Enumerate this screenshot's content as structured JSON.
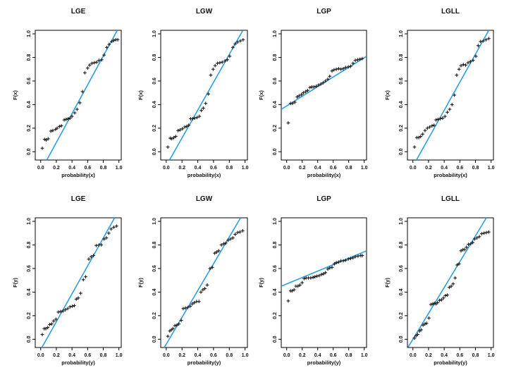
{
  "figure": {
    "background": "#ffffff",
    "description": "2x4 grid of P-P probability plots with fitted lines"
  },
  "style": {
    "line_color": "#2B9FE0",
    "marker_color": "#1a1a1a",
    "axis_color": "#000000",
    "text_color": "#111111"
  },
  "axis": {
    "tick_values": [
      0.0,
      0.2,
      0.4,
      0.6,
      0.8,
      1.0
    ],
    "tick_labels": [
      "0.0",
      "0.2",
      "0.4",
      "0.6",
      "0.8",
      "1.0"
    ],
    "range": [
      -0.07,
      1.03
    ]
  },
  "chart_data": [
    {
      "type": "scatter",
      "title": "LGE",
      "xlabel": "probability(x)",
      "ylabel": "F(x)",
      "xlim": [
        0,
        1
      ],
      "ylim": [
        0,
        1
      ],
      "line": {
        "x1": 0.078,
        "y1": -0.07,
        "x2": 0.979,
        "y2": 1.03
      },
      "points": [
        [
          0.02,
          0.03
        ],
        [
          0.05,
          0.105
        ],
        [
          0.07,
          0.1
        ],
        [
          0.095,
          0.11
        ],
        [
          0.13,
          0.175
        ],
        [
          0.155,
          0.18
        ],
        [
          0.19,
          0.19
        ],
        [
          0.21,
          0.2
        ],
        [
          0.24,
          0.215
        ],
        [
          0.265,
          0.22
        ],
        [
          0.3,
          0.27
        ],
        [
          0.325,
          0.275
        ],
        [
          0.35,
          0.28
        ],
        [
          0.375,
          0.285
        ],
        [
          0.4,
          0.3
        ],
        [
          0.435,
          0.33
        ],
        [
          0.465,
          0.36
        ],
        [
          0.5,
          0.415
        ],
        [
          0.535,
          0.51
        ],
        [
          0.565,
          0.67
        ],
        [
          0.6,
          0.71
        ],
        [
          0.625,
          0.735
        ],
        [
          0.655,
          0.75
        ],
        [
          0.685,
          0.755
        ],
        [
          0.715,
          0.76
        ],
        [
          0.745,
          0.775
        ],
        [
          0.78,
          0.78
        ],
        [
          0.81,
          0.82
        ],
        [
          0.845,
          0.885
        ],
        [
          0.875,
          0.91
        ],
        [
          0.91,
          0.935
        ],
        [
          0.935,
          0.945
        ],
        [
          0.96,
          0.95
        ],
        [
          0.985,
          0.95
        ]
      ]
    },
    {
      "type": "scatter",
      "title": "LGW",
      "xlabel": "probability(x)",
      "ylabel": "F(x)",
      "xlim": [
        0,
        1
      ],
      "ylim": [
        0,
        1
      ],
      "line": {
        "x1": 0.042,
        "y1": -0.07,
        "x2": 0.973,
        "y2": 1.03
      },
      "points": [
        [
          0.02,
          0.04
        ],
        [
          0.05,
          0.115
        ],
        [
          0.07,
          0.11
        ],
        [
          0.095,
          0.12
        ],
        [
          0.12,
          0.13
        ],
        [
          0.15,
          0.18
        ],
        [
          0.175,
          0.185
        ],
        [
          0.205,
          0.195
        ],
        [
          0.235,
          0.21
        ],
        [
          0.26,
          0.215
        ],
        [
          0.285,
          0.225
        ],
        [
          0.31,
          0.28
        ],
        [
          0.335,
          0.28
        ],
        [
          0.36,
          0.285
        ],
        [
          0.39,
          0.29
        ],
        [
          0.42,
          0.3
        ],
        [
          0.445,
          0.35
        ],
        [
          0.47,
          0.37
        ],
        [
          0.5,
          0.41
        ],
        [
          0.535,
          0.49
        ],
        [
          0.565,
          0.65
        ],
        [
          0.595,
          0.7
        ],
        [
          0.62,
          0.73
        ],
        [
          0.65,
          0.75
        ],
        [
          0.68,
          0.755
        ],
        [
          0.71,
          0.76
        ],
        [
          0.745,
          0.77
        ],
        [
          0.775,
          0.78
        ],
        [
          0.805,
          0.81
        ],
        [
          0.845,
          0.885
        ],
        [
          0.875,
          0.915
        ],
        [
          0.905,
          0.93
        ],
        [
          0.94,
          0.94
        ],
        [
          0.975,
          0.95
        ]
      ]
    },
    {
      "type": "scatter",
      "title": "LGP",
      "xlabel": "probability(x)",
      "ylabel": "F(x)",
      "xlim": [
        0,
        1
      ],
      "ylim": [
        0,
        1
      ],
      "line": {
        "x1": -0.07,
        "y1": 0.36,
        "x2": 1.03,
        "y2": 0.81
      },
      "points": [
        [
          0.02,
          0.245
        ],
        [
          0.05,
          0.41
        ],
        [
          0.075,
          0.41
        ],
        [
          0.105,
          0.42
        ],
        [
          0.135,
          0.465
        ],
        [
          0.16,
          0.475
        ],
        [
          0.19,
          0.485
        ],
        [
          0.215,
          0.5
        ],
        [
          0.245,
          0.51
        ],
        [
          0.27,
          0.52
        ],
        [
          0.3,
          0.545
        ],
        [
          0.325,
          0.55
        ],
        [
          0.35,
          0.55
        ],
        [
          0.38,
          0.555
        ],
        [
          0.41,
          0.565
        ],
        [
          0.44,
          0.575
        ],
        [
          0.47,
          0.585
        ],
        [
          0.5,
          0.6
        ],
        [
          0.53,
          0.615
        ],
        [
          0.555,
          0.64
        ],
        [
          0.585,
          0.685
        ],
        [
          0.61,
          0.695
        ],
        [
          0.64,
          0.7
        ],
        [
          0.67,
          0.705
        ],
        [
          0.7,
          0.7
        ],
        [
          0.73,
          0.705
        ],
        [
          0.76,
          0.715
        ],
        [
          0.795,
          0.72
        ],
        [
          0.825,
          0.725
        ],
        [
          0.855,
          0.75
        ],
        [
          0.885,
          0.775
        ],
        [
          0.915,
          0.78
        ],
        [
          0.945,
          0.785
        ],
        [
          0.975,
          0.79
        ]
      ]
    },
    {
      "type": "scatter",
      "title": "LGLL",
      "xlabel": "probability(x)",
      "ylabel": "F(x)",
      "xlim": [
        0,
        1
      ],
      "ylim": [
        0,
        1
      ],
      "line": {
        "x1": 0.045,
        "y1": -0.07,
        "x2": 0.97,
        "y2": 1.03
      },
      "points": [
        [
          0.02,
          0.04
        ],
        [
          0.05,
          0.12
        ],
        [
          0.075,
          0.12
        ],
        [
          0.1,
          0.13
        ],
        [
          0.125,
          0.15
        ],
        [
          0.155,
          0.18
        ],
        [
          0.185,
          0.2
        ],
        [
          0.215,
          0.21
        ],
        [
          0.245,
          0.22
        ],
        [
          0.27,
          0.225
        ],
        [
          0.295,
          0.27
        ],
        [
          0.32,
          0.275
        ],
        [
          0.35,
          0.28
        ],
        [
          0.38,
          0.285
        ],
        [
          0.41,
          0.3
        ],
        [
          0.44,
          0.335
        ],
        [
          0.47,
          0.36
        ],
        [
          0.5,
          0.4
        ],
        [
          0.53,
          0.48
        ],
        [
          0.56,
          0.65
        ],
        [
          0.59,
          0.7
        ],
        [
          0.615,
          0.73
        ],
        [
          0.645,
          0.74
        ],
        [
          0.675,
          0.735
        ],
        [
          0.705,
          0.755
        ],
        [
          0.735,
          0.765
        ],
        [
          0.77,
          0.775
        ],
        [
          0.805,
          0.81
        ],
        [
          0.835,
          0.9
        ],
        [
          0.865,
          0.935
        ],
        [
          0.9,
          0.94
        ],
        [
          0.935,
          0.95
        ],
        [
          0.97,
          0.96
        ]
      ]
    },
    {
      "type": "scatter",
      "title": "LGE",
      "xlabel": "probability(y)",
      "ylabel": "F(y)",
      "xlim": [
        0,
        1
      ],
      "ylim": [
        0,
        1
      ],
      "line": {
        "x1": 0.015,
        "y1": -0.07,
        "x2": 0.945,
        "y2": 1.03
      },
      "points": [
        [
          0.02,
          0.04
        ],
        [
          0.045,
          0.09
        ],
        [
          0.065,
          0.09
        ],
        [
          0.09,
          0.1
        ],
        [
          0.115,
          0.125
        ],
        [
          0.14,
          0.13
        ],
        [
          0.165,
          0.155
        ],
        [
          0.195,
          0.17
        ],
        [
          0.225,
          0.23
        ],
        [
          0.255,
          0.235
        ],
        [
          0.285,
          0.24
        ],
        [
          0.315,
          0.25
        ],
        [
          0.345,
          0.26
        ],
        [
          0.375,
          0.275
        ],
        [
          0.405,
          0.28
        ],
        [
          0.43,
          0.285
        ],
        [
          0.455,
          0.34
        ],
        [
          0.48,
          0.35
        ],
        [
          0.51,
          0.39
        ],
        [
          0.545,
          0.505
        ],
        [
          0.575,
          0.53
        ],
        [
          0.615,
          0.68
        ],
        [
          0.645,
          0.7
        ],
        [
          0.675,
          0.71
        ],
        [
          0.71,
          0.795
        ],
        [
          0.745,
          0.8
        ],
        [
          0.775,
          0.8
        ],
        [
          0.81,
          0.85
        ],
        [
          0.84,
          0.86
        ],
        [
          0.87,
          0.9
        ],
        [
          0.9,
          0.935
        ],
        [
          0.935,
          0.95
        ],
        [
          0.97,
          0.96
        ]
      ]
    },
    {
      "type": "scatter",
      "title": "LGW",
      "xlabel": "probability(y)",
      "ylabel": "F(y)",
      "xlim": [
        0,
        1
      ],
      "ylim": [
        0,
        1
      ],
      "line": {
        "x1": -0.025,
        "y1": -0.07,
        "x2": 0.943,
        "y2": 1.03
      },
      "points": [
        [
          0.02,
          0.025
        ],
        [
          0.045,
          0.07
        ],
        [
          0.065,
          0.08
        ],
        [
          0.085,
          0.09
        ],
        [
          0.11,
          0.115
        ],
        [
          0.135,
          0.12
        ],
        [
          0.16,
          0.13
        ],
        [
          0.19,
          0.16
        ],
        [
          0.215,
          0.26
        ],
        [
          0.245,
          0.265
        ],
        [
          0.275,
          0.27
        ],
        [
          0.305,
          0.28
        ],
        [
          0.33,
          0.3
        ],
        [
          0.355,
          0.31
        ],
        [
          0.385,
          0.32
        ],
        [
          0.415,
          0.32
        ],
        [
          0.44,
          0.4
        ],
        [
          0.465,
          0.42
        ],
        [
          0.49,
          0.43
        ],
        [
          0.52,
          0.46
        ],
        [
          0.555,
          0.6
        ],
        [
          0.585,
          0.61
        ],
        [
          0.615,
          0.73
        ],
        [
          0.64,
          0.74
        ],
        [
          0.665,
          0.75
        ],
        [
          0.7,
          0.8
        ],
        [
          0.73,
          0.81
        ],
        [
          0.755,
          0.815
        ],
        [
          0.785,
          0.84
        ],
        [
          0.815,
          0.85
        ],
        [
          0.845,
          0.86
        ],
        [
          0.875,
          0.89
        ],
        [
          0.905,
          0.905
        ],
        [
          0.935,
          0.91
        ],
        [
          0.97,
          0.92
        ]
      ]
    },
    {
      "type": "scatter",
      "title": "LGP",
      "xlabel": "probability(y)",
      "ylabel": "F(y)",
      "xlim": [
        0,
        1
      ],
      "ylim": [
        0,
        1
      ],
      "line": {
        "x1": -0.07,
        "y1": 0.45,
        "x2": 1.03,
        "y2": 0.75
      },
      "points": [
        [
          0.02,
          0.325
        ],
        [
          0.05,
          0.41
        ],
        [
          0.07,
          0.41
        ],
        [
          0.095,
          0.42
        ],
        [
          0.12,
          0.45
        ],
        [
          0.145,
          0.45
        ],
        [
          0.17,
          0.46
        ],
        [
          0.2,
          0.48
        ],
        [
          0.225,
          0.515
        ],
        [
          0.25,
          0.52
        ],
        [
          0.28,
          0.52
        ],
        [
          0.31,
          0.52
        ],
        [
          0.34,
          0.525
        ],
        [
          0.365,
          0.53
        ],
        [
          0.39,
          0.535
        ],
        [
          0.42,
          0.54
        ],
        [
          0.45,
          0.55
        ],
        [
          0.475,
          0.555
        ],
        [
          0.5,
          0.565
        ],
        [
          0.53,
          0.595
        ],
        [
          0.555,
          0.605
        ],
        [
          0.585,
          0.61
        ],
        [
          0.615,
          0.64
        ],
        [
          0.64,
          0.65
        ],
        [
          0.67,
          0.655
        ],
        [
          0.7,
          0.665
        ],
        [
          0.73,
          0.665
        ],
        [
          0.76,
          0.67
        ],
        [
          0.795,
          0.68
        ],
        [
          0.825,
          0.685
        ],
        [
          0.855,
          0.69
        ],
        [
          0.885,
          0.7
        ],
        [
          0.92,
          0.705
        ],
        [
          0.955,
          0.71
        ],
        [
          0.975,
          0.71
        ]
      ]
    },
    {
      "type": "scatter",
      "title": "LGLL",
      "xlabel": "probability(y)",
      "ylabel": "F(y)",
      "xlim": [
        0,
        1
      ],
      "ylim": [
        0,
        1
      ],
      "line": {
        "x1": -0.06,
        "y1": -0.065,
        "x2": 0.94,
        "y2": 1.03
      },
      "points": [
        [
          0.02,
          0.01
        ],
        [
          0.04,
          0.03
        ],
        [
          0.06,
          0.04
        ],
        [
          0.085,
          0.07
        ],
        [
          0.105,
          0.08
        ],
        [
          0.13,
          0.12
        ],
        [
          0.155,
          0.13
        ],
        [
          0.175,
          0.135
        ],
        [
          0.205,
          0.18
        ],
        [
          0.23,
          0.295
        ],
        [
          0.255,
          0.3
        ],
        [
          0.275,
          0.305
        ],
        [
          0.295,
          0.3
        ],
        [
          0.315,
          0.31
        ],
        [
          0.34,
          0.33
        ],
        [
          0.365,
          0.335
        ],
        [
          0.39,
          0.35
        ],
        [
          0.415,
          0.37
        ],
        [
          0.44,
          0.375
        ],
        [
          0.465,
          0.44
        ],
        [
          0.49,
          0.45
        ],
        [
          0.515,
          0.47
        ],
        [
          0.54,
          0.52
        ],
        [
          0.565,
          0.63
        ],
        [
          0.59,
          0.64
        ],
        [
          0.615,
          0.75
        ],
        [
          0.64,
          0.76
        ],
        [
          0.66,
          0.76
        ],
        [
          0.685,
          0.78
        ],
        [
          0.71,
          0.805
        ],
        [
          0.74,
          0.81
        ],
        [
          0.765,
          0.82
        ],
        [
          0.79,
          0.85
        ],
        [
          0.82,
          0.86
        ],
        [
          0.85,
          0.87
        ],
        [
          0.88,
          0.895
        ],
        [
          0.91,
          0.9
        ],
        [
          0.94,
          0.905
        ],
        [
          0.97,
          0.91
        ]
      ]
    }
  ]
}
